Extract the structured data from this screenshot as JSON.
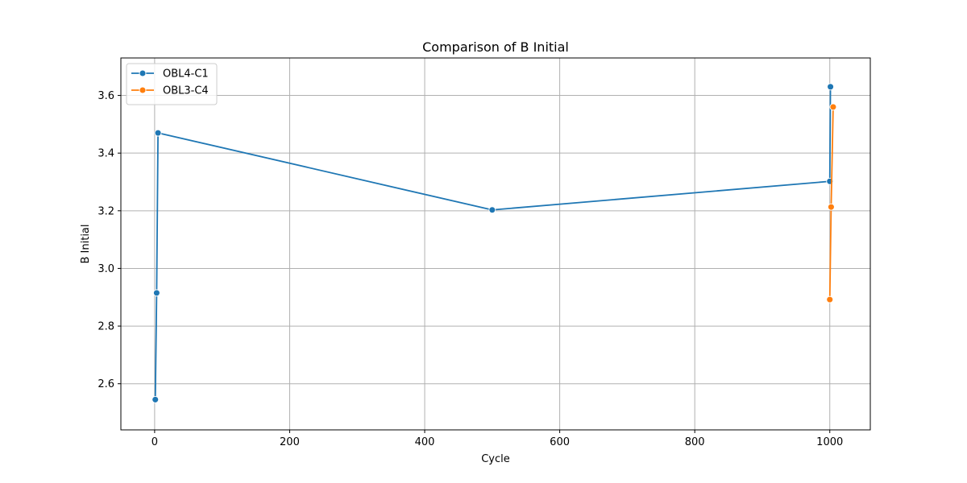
{
  "chart_data": {
    "type": "line",
    "title": "Comparison of B Initial",
    "xlabel": "Cycle",
    "ylabel": "B Initial",
    "xlim": [
      -50,
      1060
    ],
    "ylim": [
      2.44,
      3.73
    ],
    "xticks": [
      0,
      200,
      400,
      600,
      800,
      1000
    ],
    "yticks": [
      2.6,
      2.8,
      3.0,
      3.2,
      3.4,
      3.6
    ],
    "xtick_labels": [
      "0",
      "200",
      "400",
      "600",
      "800",
      "1000"
    ],
    "ytick_labels": [
      "2.6",
      "2.8",
      "3.0",
      "3.2",
      "3.4",
      "3.6"
    ],
    "grid": true,
    "legend_position": "top-left",
    "series": [
      {
        "name": "OBL4-C1",
        "color": "#1f77b4",
        "x": [
          1,
          3,
          5,
          500,
          1000,
          1001
        ],
        "y": [
          2.545,
          2.915,
          3.47,
          3.203,
          3.302,
          3.63
        ]
      },
      {
        "name": "OBL3-C4",
        "color": "#ff7f0e",
        "x": [
          1000,
          1002,
          1005
        ],
        "y": [
          2.892,
          3.213,
          3.56
        ]
      }
    ]
  }
}
